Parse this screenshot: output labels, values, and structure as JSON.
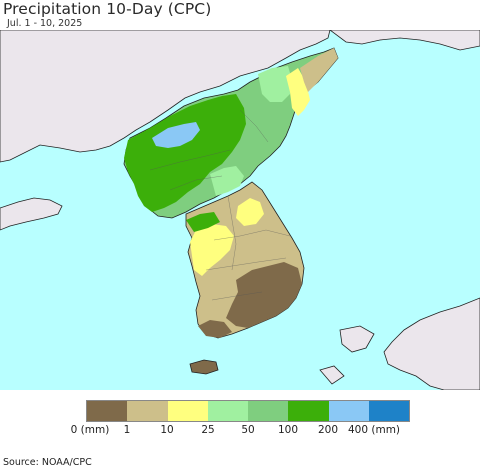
{
  "title": "Precipitation 10-Day (CPC)",
  "subtitle": "Jul. 1 - 10, 2025",
  "legend": {
    "colors": [
      "#7f6a4a",
      "#cdbf8a",
      "#ffff7f",
      "#a0f0a0",
      "#7fce7f",
      "#3caf0a",
      "#8ac8f5",
      "#1e82c8"
    ],
    "labels": [
      "0 (mm)",
      "1",
      "10",
      "25",
      "50",
      "100",
      "200",
      "400 (mm)"
    ]
  },
  "source": "Source: NOAA/CPC",
  "colors": {
    "sea": "#b8ffff",
    "land_outside": "#ebe6ec",
    "outline": "#222222"
  }
}
